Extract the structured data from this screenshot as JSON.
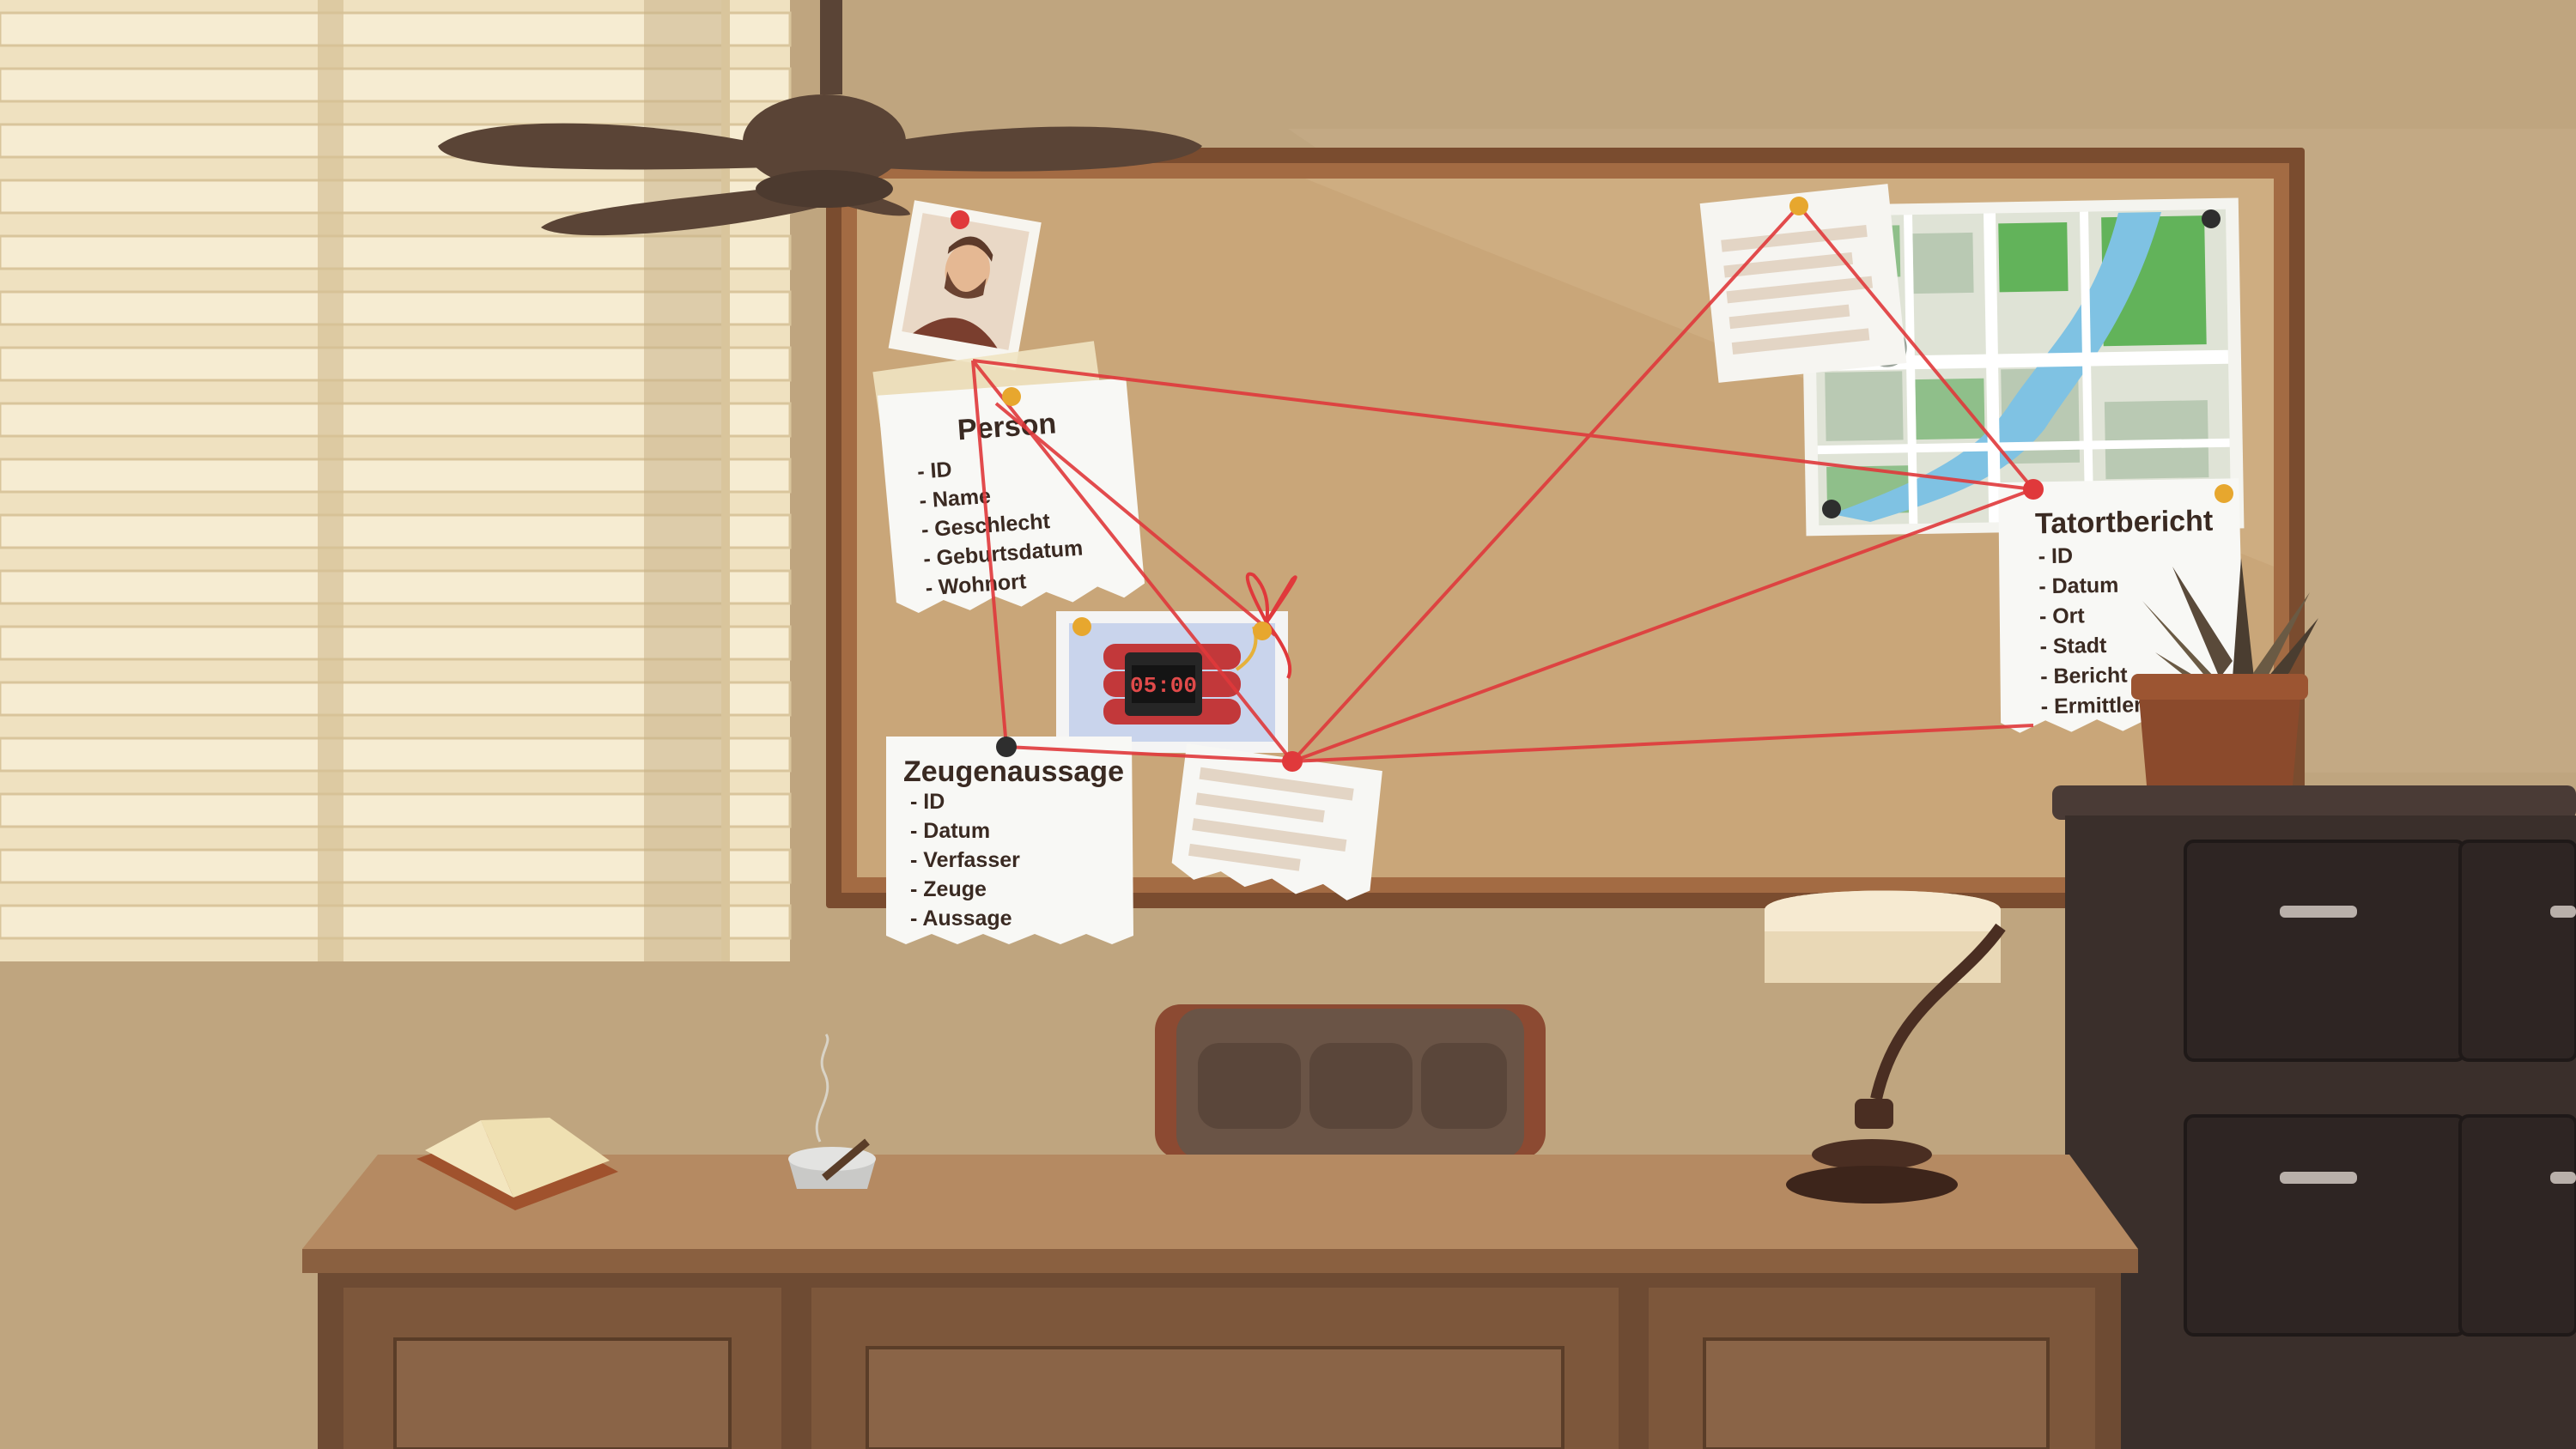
{
  "board": {
    "person": {
      "title": "Person",
      "fields": [
        "- ID",
        "- Name",
        "- Geschlecht",
        "- Geburtsdatum",
        "- Wohnort"
      ]
    },
    "witness": {
      "title": "Zeugenaussage",
      "fields": [
        "- ID",
        "- Datum",
        "- Verfasser",
        "- Zeuge",
        "- Aussage"
      ]
    },
    "crime_report": {
      "title": "Tatortbericht",
      "fields": [
        "- ID",
        "- Datum",
        "- Ort",
        "- Stadt",
        "- Bericht",
        "- Ermittler"
      ]
    },
    "bomb_timer": "05:00"
  },
  "colors": {
    "wall": "#bfa57f",
    "cork": "#c9a679",
    "frame": "#7a4c2f",
    "string": "#e0393b",
    "desk": "#b58a62",
    "cabinet": "#3a2f2b"
  }
}
